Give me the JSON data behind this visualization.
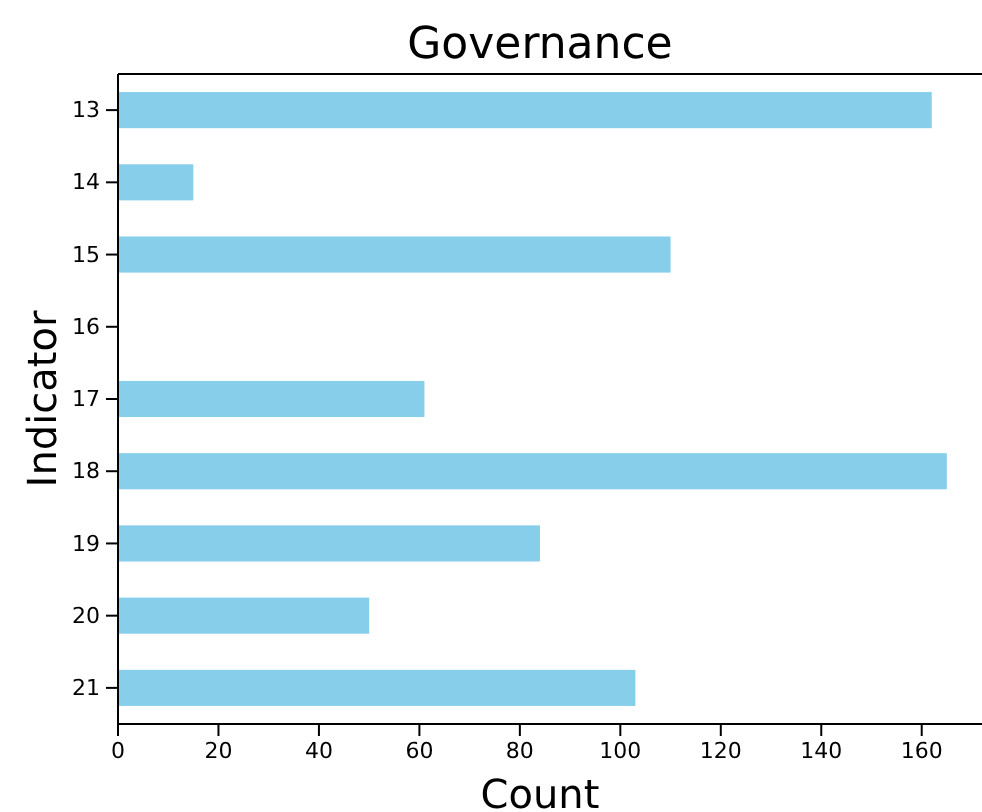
{
  "chart_data": {
    "type": "bar",
    "orientation": "horizontal",
    "title": "Governance",
    "xlabel": "Count",
    "ylabel": "Indicator",
    "categories": [
      "13",
      "14",
      "15",
      "16",
      "17",
      "18",
      "19",
      "20",
      "21"
    ],
    "values": [
      162,
      15,
      110,
      0,
      61,
      165,
      84,
      50,
      103
    ],
    "color": "#87ceeb",
    "xlim": [
      0,
      172
    ],
    "xticks": [
      0,
      20,
      40,
      60,
      80,
      100,
      120,
      140,
      160
    ],
    "grid": false
  }
}
